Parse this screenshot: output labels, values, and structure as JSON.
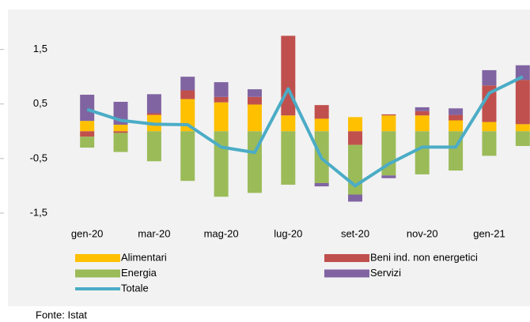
{
  "chart_data": {
    "type": "bar",
    "stacked": true,
    "categories": [
      "gen-20",
      null,
      "mar-20",
      null,
      "mag-20",
      null,
      "lug-20",
      null,
      "set-20",
      null,
      "nov-20",
      null,
      "gen-21",
      null
    ],
    "series": [
      {
        "name": "Alimentari",
        "color": "#ffc000",
        "values": [
          0.19,
          0.12,
          0.3,
          0.59,
          0.53,
          0.49,
          0.29,
          0.23,
          0.26,
          0.29,
          0.29,
          0.2,
          0.17,
          0.13
        ]
      },
      {
        "name": "Beni ind. non energetici",
        "color": "#c0504d",
        "values": [
          -0.1,
          -0.03,
          0.03,
          0.16,
          0.1,
          0.14,
          1.46,
          0.25,
          -0.25,
          0.02,
          0.08,
          0.1,
          0.67,
          0.81
        ]
      },
      {
        "name": "Energia",
        "color": "#9bbb59",
        "values": [
          -0.2,
          -0.35,
          -0.55,
          -0.91,
          -1.2,
          -1.13,
          -0.98,
          -0.95,
          -0.91,
          -0.81,
          -0.79,
          -0.72,
          -0.45,
          -0.27
        ]
      },
      {
        "name": "Servizi",
        "color": "#8064a2",
        "values": [
          0.48,
          0.42,
          0.35,
          0.25,
          0.27,
          0.14,
          0,
          -0.06,
          -0.13,
          -0.05,
          0.07,
          0.12,
          0.28,
          0.27
        ]
      },
      {
        "name": "Totale",
        "type": "line",
        "color": "#4bacc6",
        "values": [
          0.4,
          0.2,
          0.13,
          0.12,
          -0.29,
          -0.39,
          0.78,
          -0.5,
          -1.0,
          -0.6,
          -0.29,
          -0.29,
          0.7,
          1.0
        ]
      }
    ],
    "ylim": [
      -1.5,
      1.9
    ],
    "yticks": [
      {
        "value": -1.5,
        "label": "-1,5"
      },
      {
        "value": -0.5,
        "label": "-0,5"
      },
      {
        "value": 0.5,
        "label": "0,5"
      },
      {
        "value": 1.5,
        "label": "1,5"
      }
    ],
    "grid": false,
    "source": "Fonte: Istat"
  }
}
